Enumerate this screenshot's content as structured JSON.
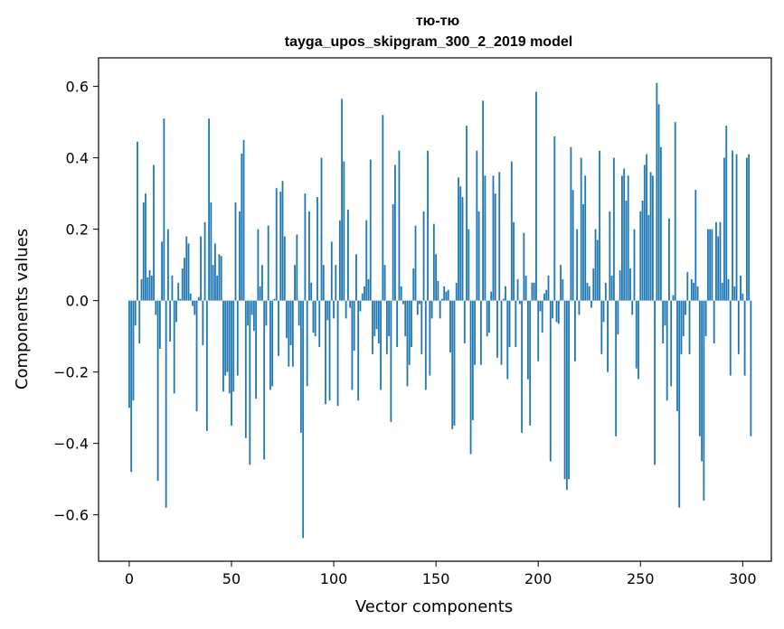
{
  "chart_data": {
    "type": "bar",
    "title": "тю-тю",
    "subtitle": "tayga_upos_skipgram_300_2_2019 model",
    "xlabel": "Vector components",
    "ylabel": "Components values",
    "xlim": [
      -15,
      314
    ],
    "ylim": [
      -0.73,
      0.68
    ],
    "xticks": [
      0,
      50,
      100,
      150,
      200,
      250,
      300
    ],
    "xtick_labels": [
      "0",
      "50",
      "100",
      "150",
      "200",
      "250",
      "300"
    ],
    "yticks": [
      -0.6,
      -0.4,
      -0.2,
      0.0,
      0.2,
      0.4,
      0.6
    ],
    "ytick_labels": [
      "−0.6",
      "−0.4",
      "−0.2",
      "0.0",
      "0.2",
      "0.4",
      "0.6"
    ],
    "bar_color": "#1f77b4",
    "grid": false,
    "legend": false,
    "values": [
      -0.3,
      -0.48,
      -0.28,
      -0.07,
      0.445,
      -0.12,
      0.06,
      0.275,
      0.3,
      0.065,
      0.085,
      0.07,
      0.38,
      -0.04,
      -0.505,
      -0.135,
      0.165,
      0.51,
      -0.58,
      0.2,
      -0.115,
      0.07,
      -0.26,
      -0.06,
      0.05,
      0.005,
      0.09,
      0.12,
      0.18,
      0.16,
      0.02,
      -0.015,
      -0.04,
      -0.31,
      0.01,
      0.18,
      -0.125,
      0.22,
      -0.365,
      0.51,
      0.275,
      0.1,
      0.16,
      0.07,
      0.13,
      0.125,
      -0.255,
      -0.21,
      -0.2,
      -0.26,
      -0.35,
      -0.255,
      0.275,
      -0.21,
      0.25,
      0.412,
      0.45,
      -0.385,
      -0.07,
      -0.46,
      -0.04,
      -0.085,
      -0.275,
      0.2,
      0.04,
      0.1,
      -0.445,
      -0.07,
      0.21,
      -0.25,
      -0.24,
      0.005,
      0.315,
      -0.155,
      0.305,
      0.335,
      0.18,
      -0.105,
      -0.185,
      -0.125,
      -0.185,
      0.1,
      0.185,
      -0.07,
      -0.37,
      -0.665,
      0.3,
      -0.24,
      0.25,
      0.05,
      -0.09,
      -0.1,
      0.29,
      -0.13,
      0.4,
      0.1,
      -0.29,
      -0.055,
      -0.28,
      0.165,
      -0.05,
      0.1,
      -0.295,
      0.225,
      0.565,
      0.39,
      -0.05,
      0.255,
      -0.02,
      -0.25,
      -0.14,
      0.13,
      -0.28,
      -0.03,
      0.02,
      0.04,
      0.225,
      0.06,
      0.395,
      -0.15,
      -0.1,
      -0.08,
      -0.12,
      -0.25,
      0.52,
      0.1,
      -0.15,
      -0.1,
      -0.34,
      0.27,
      0.38,
      -0.13,
      0.42,
      0.04,
      -0.01,
      -0.1,
      -0.24,
      -0.18,
      -0.13,
      0.09,
      0.21,
      -0.04,
      -0.01,
      -0.15,
      0.25,
      -0.25,
      0.42,
      -0.21,
      -0.05,
      0.215,
      0.13,
      0.055,
      -0.05,
      0.005,
      0.04,
      0.025,
      0.03,
      -0.145,
      -0.36,
      -0.35,
      0.05,
      0.345,
      0.32,
      0.29,
      -0.12,
      0.49,
      0.2,
      -0.43,
      -0.335,
      -0.18,
      0.42,
      0.25,
      -0.18,
      0.56,
      0.35,
      -0.1,
      -0.09,
      0.025,
      0.35,
      0.3,
      -0.16,
      0.36,
      -0.18,
      0.005,
      0.04,
      -0.22,
      -0.13,
      0.39,
      0.22,
      -0.13,
      0.06,
      -0.01,
      -0.37,
      0.19,
      0.07,
      -0.22,
      -0.35,
      0.05,
      0.05,
      0.585,
      -0.17,
      -0.03,
      -0.09,
      0.02,
      0.03,
      0.07,
      -0.45,
      -0.05,
      0.46,
      -0.06,
      -0.065,
      0.1,
      0.06,
      -0.5,
      -0.53,
      -0.5,
      0.43,
      0.31,
      -0.17,
      0.2,
      -0.04,
      0.4,
      0.27,
      0.35,
      0.05,
      0.04,
      -0.02,
      0.09,
      0.2,
      0.17,
      0.42,
      -0.15,
      -0.06,
      0.05,
      -0.2,
      0.25,
      0.07,
      0.4,
      -0.38,
      -0.095,
      0.085,
      0.35,
      0.37,
      0.28,
      0.35,
      0.09,
      -0.04,
      0.2,
      -0.19,
      -0.22,
      0.25,
      0.28,
      0.38,
      0.41,
      0.24,
      0.36,
      0.35,
      -0.46,
      0.61,
      0.55,
      0.43,
      -0.12,
      -0.07,
      -0.28,
      0.23,
      -0.24,
      0.015,
      0.5,
      -0.31,
      -0.58,
      -0.15,
      -0.1,
      -0.04,
      0.08,
      -0.15,
      0.06,
      0.05,
      0.31,
      0.04,
      -0.38,
      -0.45,
      -0.56,
      -0.1,
      0.2,
      0.2,
      0.2,
      -0.12,
      0.22,
      0.18,
      0.22,
      0.05,
      0.4,
      0.49,
      0.06,
      -0.21,
      0.42,
      0.04,
      0.41,
      -0.15,
      0.07,
      0.02,
      -0.21,
      0.4,
      0.41,
      -0.38
    ]
  }
}
